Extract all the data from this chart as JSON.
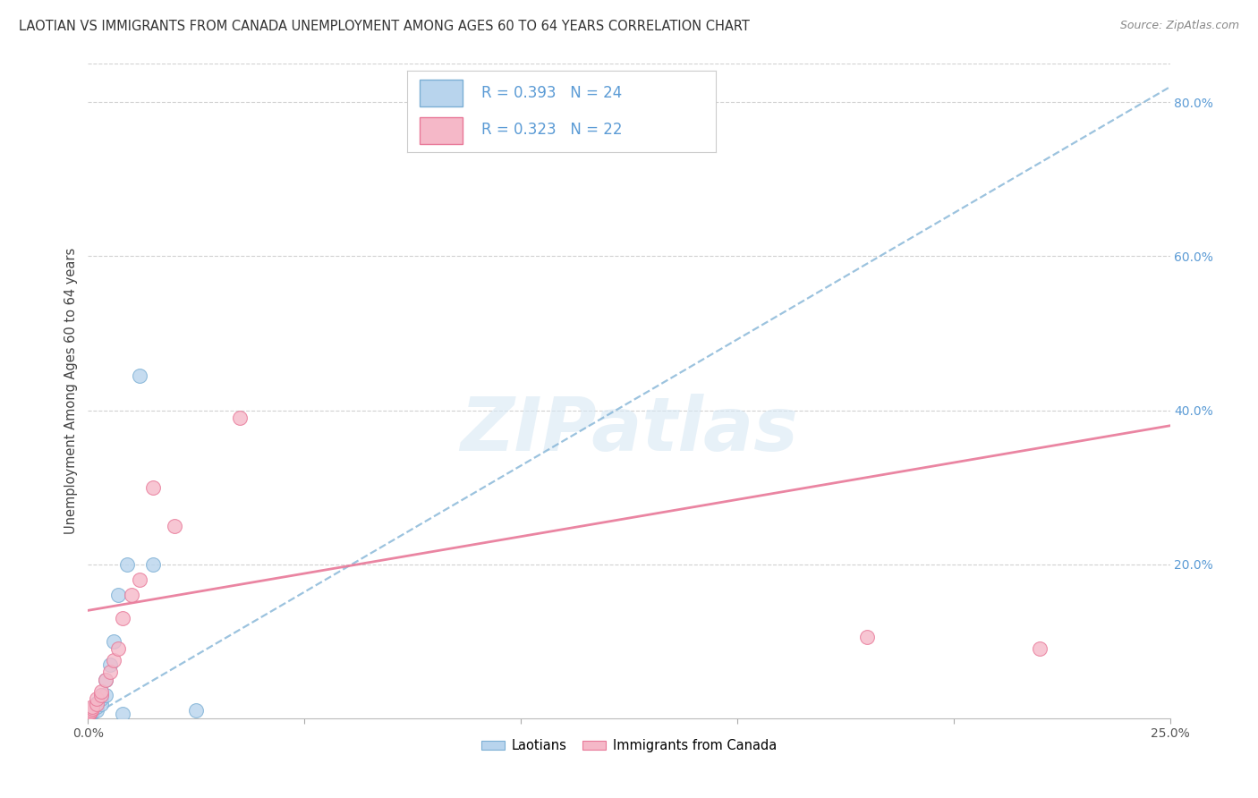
{
  "title": "LAOTIAN VS IMMIGRANTS FROM CANADA UNEMPLOYMENT AMONG AGES 60 TO 64 YEARS CORRELATION CHART",
  "source": "Source: ZipAtlas.com",
  "ylabel": "Unemployment Among Ages 60 to 64 years",
  "laotian_R": 0.393,
  "laotian_N": 24,
  "canada_R": 0.323,
  "canada_N": 22,
  "laotian_fill": "#b8d4ed",
  "laotian_edge": "#7bafd4",
  "canada_fill": "#f5b8c8",
  "canada_edge": "#e87898",
  "laotian_line": "#7bafd4",
  "canada_line": "#e87898",
  "right_tick_color": "#5b9bd5",
  "watermark_color": "#d8e8f4",
  "bg_color": "#ffffff",
  "grid_color": "#cccccc",
  "xlim": [
    0.0,
    0.25
  ],
  "ylim": [
    0.0,
    0.85
  ],
  "laotian_x": [
    0.0002,
    0.0003,
    0.0005,
    0.0007,
    0.001,
    0.001,
    0.001,
    0.0015,
    0.002,
    0.002,
    0.002,
    0.003,
    0.003,
    0.003,
    0.004,
    0.004,
    0.005,
    0.006,
    0.007,
    0.009,
    0.012,
    0.015,
    0.025,
    0.008
  ],
  "laotian_y": [
    0.005,
    0.005,
    0.005,
    0.007,
    0.008,
    0.01,
    0.012,
    0.015,
    0.01,
    0.015,
    0.02,
    0.018,
    0.025,
    0.03,
    0.03,
    0.05,
    0.07,
    0.1,
    0.16,
    0.2,
    0.445,
    0.2,
    0.01,
    0.005
  ],
  "canada_x": [
    0.0002,
    0.0003,
    0.0005,
    0.0007,
    0.001,
    0.001,
    0.002,
    0.002,
    0.003,
    0.003,
    0.004,
    0.005,
    0.006,
    0.007,
    0.008,
    0.01,
    0.012,
    0.015,
    0.02,
    0.035,
    0.18,
    0.22
  ],
  "canada_y": [
    0.005,
    0.007,
    0.008,
    0.01,
    0.012,
    0.015,
    0.018,
    0.025,
    0.03,
    0.035,
    0.05,
    0.06,
    0.075,
    0.09,
    0.13,
    0.16,
    0.18,
    0.3,
    0.25,
    0.39,
    0.105,
    0.09
  ],
  "laotian_line_x0": 0.0,
  "laotian_line_x1": 0.25,
  "laotian_line_y0": 0.0,
  "laotian_line_y1": 0.82,
  "canada_line_x0": 0.0,
  "canada_line_x1": 0.25,
  "canada_line_y0": 0.14,
  "canada_line_y1": 0.38,
  "xtick_positions": [
    0.0,
    0.05,
    0.1,
    0.15,
    0.2,
    0.25
  ],
  "ytick_right": [
    0.2,
    0.4,
    0.6,
    0.8
  ],
  "ytick_right_labels": [
    "20.0%",
    "40.0%",
    "60.0%",
    "80.0%"
  ]
}
